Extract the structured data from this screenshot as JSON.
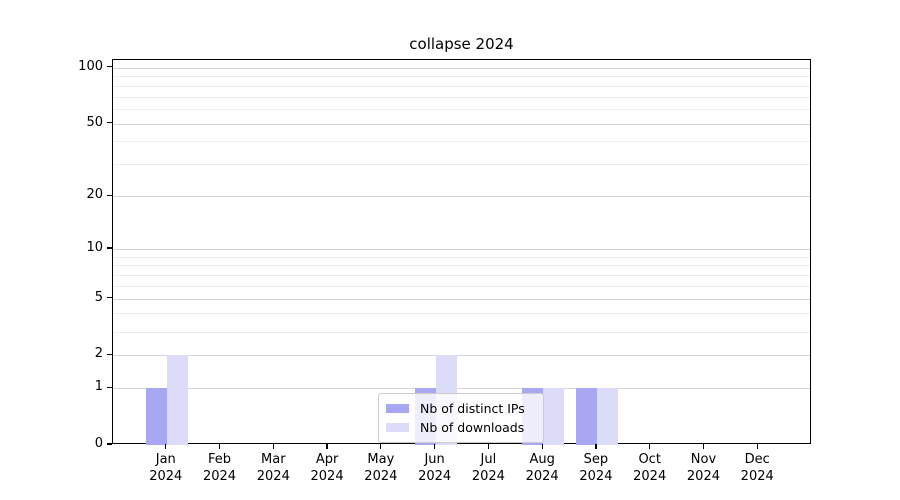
{
  "title": "collapse 2024",
  "legend": {
    "items": [
      {
        "label": "Nb of distinct IPs",
        "color_key": "ips"
      },
      {
        "label": "Nb of downloads",
        "color_key": "downloads"
      }
    ]
  },
  "colors": {
    "ips": "#a8a8f2",
    "downloads": "#dcdcf8",
    "grid_major": "#d4d4d4",
    "grid_minor": "#ececec",
    "spine": "#000000",
    "legend_border": "#cccccc"
  },
  "chart_data": {
    "type": "bar",
    "title": "collapse 2024",
    "categories": [
      "Jan 2024",
      "Feb 2024",
      "Mar 2024",
      "Apr 2024",
      "May 2024",
      "Jun 2024",
      "Jul 2024",
      "Aug 2024",
      "Sep 2024",
      "Oct 2024",
      "Nov 2024",
      "Dec 2024"
    ],
    "x_tick_months": [
      "Jan",
      "Feb",
      "Mar",
      "Apr",
      "May",
      "Jun",
      "Jul",
      "Aug",
      "Sep",
      "Oct",
      "Nov",
      "Dec"
    ],
    "x_tick_year": "2024",
    "series": [
      {
        "name": "Nb of distinct IPs",
        "color_key": "ips",
        "values": [
          1,
          0,
          0,
          0,
          0,
          1,
          0,
          1,
          1,
          0,
          0,
          0
        ]
      },
      {
        "name": "Nb of downloads",
        "color_key": "downloads",
        "values": [
          2,
          0,
          0,
          0,
          0,
          2,
          0,
          1,
          1,
          0,
          0,
          0
        ]
      }
    ],
    "y_scale": "log1p",
    "ylim": [
      0,
      110
    ],
    "y_major_ticks": [
      0,
      1,
      2,
      5,
      10,
      20,
      50,
      100
    ],
    "y_minor_gridlines": [
      3,
      4,
      6,
      7,
      8,
      9,
      30,
      40,
      60,
      70,
      80,
      90
    ],
    "grid": true,
    "legend_position": "lower center",
    "xlabel": "",
    "ylabel": ""
  }
}
